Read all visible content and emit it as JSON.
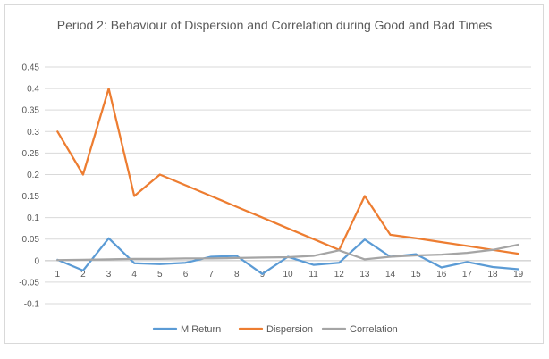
{
  "chart_data": {
    "type": "line",
    "title": "Period 2: Behaviour of Dispersion and Correlation during Good and Bad Times",
    "xlabel": "",
    "ylabel": "",
    "categories": [
      "1",
      "2",
      "3",
      "4",
      "5",
      "6",
      "7",
      "8",
      "9",
      "10",
      "11",
      "12",
      "13",
      "14",
      "15",
      "16",
      "17",
      "18",
      "19"
    ],
    "ylim": [
      -0.1,
      0.45
    ],
    "yticks": [
      -0.1,
      -0.05,
      0,
      0.05,
      0.1,
      0.15,
      0.2,
      0.25,
      0.3,
      0.35,
      0.4,
      0.45
    ],
    "ytick_labels": [
      "-0.1",
      "-0.05",
      "0",
      "0.05",
      "0.1",
      "0.15",
      "0.2",
      "0.25",
      "0.3",
      "0.35",
      "0.4",
      "0.45"
    ],
    "grid": true,
    "legend_position": "bottom",
    "series": [
      {
        "name": "M Return",
        "color": "#5b9bd5",
        "values": [
          0.002,
          -0.023,
          0.052,
          -0.006,
          -0.008,
          -0.005,
          0.009,
          0.011,
          -0.031,
          0.009,
          -0.01,
          -0.005,
          0.049,
          0.009,
          0.015,
          -0.016,
          -0.003,
          -0.015,
          -0.02
        ]
      },
      {
        "name": "Dispersion",
        "color": "#ed7d31",
        "values": [
          0.3,
          0.2,
          0.4,
          0.15,
          0.2,
          0.175,
          0.15,
          0.125,
          0.1,
          0.075,
          0.05,
          0.025,
          0.15,
          0.06,
          0.052,
          0.043,
          0.034,
          0.025,
          0.016
        ]
      },
      {
        "name": "Correlation",
        "color": "#a5a5a5",
        "values": [
          0.001,
          0.002,
          0.003,
          0.004,
          0.004,
          0.005,
          0.005,
          0.006,
          0.007,
          0.008,
          0.011,
          0.024,
          0.003,
          0.009,
          0.012,
          0.014,
          0.018,
          0.025,
          0.037
        ]
      }
    ]
  }
}
